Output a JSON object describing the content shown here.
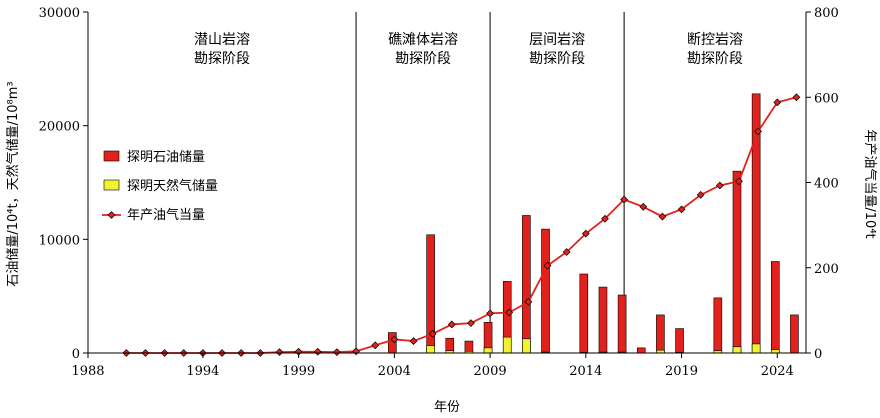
{
  "chart_data": {
    "type": "bar",
    "xlabel": "年份",
    "ylabel_left": "石油储量/10⁴t，天然气储量/10⁸m³",
    "ylabel_right": "年产油气当量/10⁴t",
    "xlim": [
      1988,
      2025.5
    ],
    "ylim_left": [
      0,
      30000
    ],
    "ylim_right": [
      0,
      800
    ],
    "x_ticks": [
      1988,
      1994,
      1999,
      2004,
      2009,
      2014,
      2019,
      2024
    ],
    "y_left_ticks": [
      0,
      10000,
      20000,
      30000
    ],
    "y_right_ticks": [
      0,
      200,
      400,
      600,
      800
    ],
    "grid": false,
    "legend_position": "left-middle",
    "colors": {
      "oil": "#e3211c",
      "gas": "#f2f230",
      "line": "#e3211c",
      "marker": "#e3211c"
    },
    "phases": [
      {
        "line1": "潜山岩溶",
        "line2": "勘探阶段",
        "start": 1988,
        "end": 2002
      },
      {
        "line1": "礁滩体岩溶",
        "line2": "勘探阶段",
        "start": 2002,
        "end": 2009
      },
      {
        "line1": "层间岩溶",
        "line2": "勘探阶段",
        "start": 2009,
        "end": 2016
      },
      {
        "line1": "断控岩溶",
        "line2": "勘探阶段",
        "start": 2016,
        "end": 2025.5
      }
    ],
    "series": [
      {
        "name": "探明石油储量",
        "kind": "bar",
        "axis": "left",
        "x": [
          2004,
          2006,
          2007,
          2008,
          2009,
          2010,
          2011,
          2012,
          2014,
          2015,
          2016,
          2017,
          2018,
          2019,
          2021,
          2022,
          2023,
          2024,
          2025
        ],
        "values": [
          1800,
          10400,
          1300,
          1050,
          2700,
          6300,
          12100,
          10900,
          6950,
          5800,
          5100,
          450,
          3350,
          2150,
          4850,
          16000,
          22800,
          8050,
          3350
        ]
      },
      {
        "name": "探明天然气储量",
        "kind": "bar",
        "axis": "left",
        "x": [
          2004,
          2006,
          2007,
          2008,
          2009,
          2010,
          2011,
          2012,
          2014,
          2015,
          2016,
          2017,
          2018,
          2019,
          2021,
          2022,
          2023,
          2024,
          2025
        ],
        "values": [
          0,
          650,
          200,
          150,
          450,
          1400,
          1250,
          80,
          50,
          80,
          80,
          0,
          250,
          50,
          200,
          550,
          800,
          300,
          0
        ]
      },
      {
        "name": "年产油气当量",
        "kind": "line",
        "axis": "right",
        "x": [
          1990,
          1991,
          1992,
          1993,
          1994,
          1995,
          1996,
          1997,
          1998,
          1999,
          2000,
          2001,
          2002,
          2003,
          2004,
          2005,
          2006,
          2007,
          2008,
          2009,
          2010,
          2011,
          2012,
          2013,
          2014,
          2015,
          2016,
          2017,
          2018,
          2019,
          2020,
          2021,
          2022,
          2023,
          2024,
          2025
        ],
        "values": [
          0,
          0,
          0,
          0,
          0,
          0,
          0,
          0,
          2,
          3,
          3,
          2,
          4,
          18,
          32,
          28,
          45,
          67,
          70,
          93,
          95,
          120,
          205,
          237,
          280,
          315,
          360,
          343,
          320,
          337,
          371,
          393,
          403,
          520,
          588,
          600
        ]
      }
    ]
  }
}
